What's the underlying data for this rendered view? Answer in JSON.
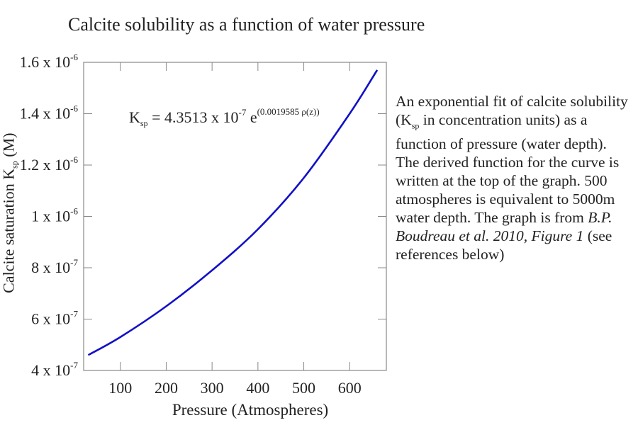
{
  "title": "Calcite solubility as a function of water pressure",
  "chart_data": {
    "type": "line",
    "title": "Calcite solubility as a function of water pressure",
    "xlabel": "Pressure (Atmospheres)",
    "ylabel": "Calcite saturation  K",
    "ylabel_subscript": "sp",
    "ylabel_suffix": "(M)",
    "xlim": [
      20,
      680
    ],
    "ylim": [
      4e-07,
      1.6e-06
    ],
    "grid": false,
    "x_ticks": [
      {
        "value": 100,
        "label": "100"
      },
      {
        "value": 200,
        "label": "200"
      },
      {
        "value": 300,
        "label": "300"
      },
      {
        "value": 400,
        "label": "400"
      },
      {
        "value": 500,
        "label": "500"
      },
      {
        "value": 600,
        "label": "600"
      }
    ],
    "y_ticks": [
      {
        "value": 4e-07,
        "mantissa": "4 x 10",
        "exp": "-7"
      },
      {
        "value": 6e-07,
        "mantissa": "6 x 10",
        "exp": "-7"
      },
      {
        "value": 8e-07,
        "mantissa": "8 x 10",
        "exp": "-7"
      },
      {
        "value": 1e-06,
        "mantissa": "1 x 10",
        "exp": "-6"
      },
      {
        "value": 1.2e-06,
        "mantissa": "1.2 x 10",
        "exp": "-6"
      },
      {
        "value": 1.4e-06,
        "mantissa": "1.4 x 10",
        "exp": "-6"
      },
      {
        "value": 1.6e-06,
        "mantissa": "1.6 x 10",
        "exp": "-6"
      }
    ],
    "series": [
      {
        "color": "#1010c8",
        "x": [
          30,
          100,
          200,
          300,
          400,
          500,
          600,
          660
        ],
        "y": [
          4.6e-07,
          5.3e-07,
          6.5e-07,
          7.9e-07,
          9.5e-07,
          1.15e-06,
          1.4e-06,
          1.57e-06
        ]
      }
    ],
    "annotation": {
      "prefix": "K",
      "prefix_sub": "sp",
      "text": " =  4.3513 x 10",
      "exp1": "-7",
      "text2": " e",
      "exp2": "(0.0019585 ρ(z))"
    }
  },
  "caption": {
    "part1": "An exponential fit of calcite solubility (K",
    "part1_sub": "sp",
    "part2": " in concentration units) as a function of pressure (water depth). The derived function for the curve is written at the top of the graph. 500 atmospheres is equivalent to 5000m water depth. The graph is from ",
    "citation": "B.P. Boudreau et al. 2010, Figure 1",
    "part3": " (see references below)"
  },
  "colors": {
    "curve": "#1010c8",
    "axis": "#888888",
    "text": "#222222"
  }
}
